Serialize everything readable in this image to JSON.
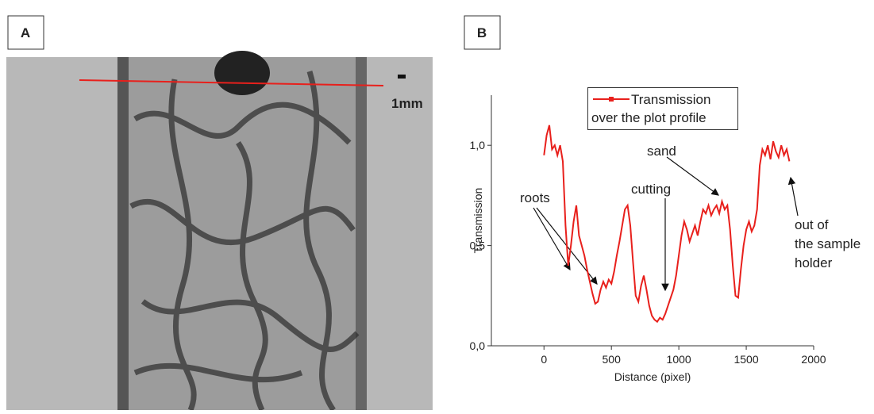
{
  "panel_labels": [
    "A",
    "B"
  ],
  "scale_label": "1mm",
  "chart_data": {
    "type": "line",
    "xlabel": "Distance (pixel)",
    "ylabel": "Transmission",
    "x": [
      0,
      20,
      40,
      60,
      80,
      100,
      120,
      140,
      160,
      180,
      200,
      220,
      240,
      260,
      280,
      300,
      320,
      340,
      360,
      380,
      400,
      420,
      440,
      460,
      480,
      500,
      520,
      540,
      560,
      580,
      600,
      620,
      640,
      660,
      680,
      700,
      720,
      740,
      760,
      780,
      800,
      820,
      840,
      860,
      880,
      900,
      920,
      940,
      960,
      980,
      1000,
      1020,
      1040,
      1060,
      1080,
      1100,
      1120,
      1140,
      1160,
      1180,
      1200,
      1220,
      1240,
      1260,
      1280,
      1300,
      1320,
      1340,
      1360,
      1380,
      1400,
      1420,
      1440,
      1460,
      1480,
      1500,
      1520,
      1540,
      1560,
      1580,
      1600,
      1620,
      1640,
      1660,
      1680,
      1700,
      1720,
      1740,
      1760,
      1780,
      1800,
      1820
    ],
    "series": [
      {
        "name": "Transmission over the plot profile",
        "color": "#e8201c",
        "values": [
          0.95,
          1.05,
          1.1,
          0.98,
          1.0,
          0.95,
          1.0,
          0.92,
          0.6,
          0.4,
          0.5,
          0.62,
          0.7,
          0.55,
          0.5,
          0.45,
          0.38,
          0.32,
          0.26,
          0.21,
          0.22,
          0.28,
          0.32,
          0.29,
          0.33,
          0.31,
          0.37,
          0.45,
          0.52,
          0.6,
          0.68,
          0.7,
          0.6,
          0.42,
          0.25,
          0.22,
          0.3,
          0.35,
          0.28,
          0.2,
          0.15,
          0.13,
          0.12,
          0.14,
          0.13,
          0.16,
          0.2,
          0.24,
          0.28,
          0.35,
          0.45,
          0.55,
          0.62,
          0.58,
          0.52,
          0.56,
          0.6,
          0.55,
          0.62,
          0.68,
          0.66,
          0.7,
          0.65,
          0.68,
          0.7,
          0.66,
          0.72,
          0.68,
          0.7,
          0.58,
          0.4,
          0.25,
          0.24,
          0.38,
          0.5,
          0.58,
          0.62,
          0.57,
          0.6,
          0.68,
          0.9,
          0.98,
          0.95,
          1.0,
          0.93,
          1.02,
          0.97,
          0.94,
          1.0,
          0.95,
          0.98,
          0.92
        ]
      }
    ],
    "xlim": [
      -390,
      2000
    ],
    "xticks": [
      0,
      500,
      1000,
      1500,
      2000
    ],
    "ylim": [
      0,
      1.25
    ],
    "yticks": [
      {
        "value": 0,
        "label": "0,0"
      },
      {
        "value": 0.5,
        "label": "0,5"
      },
      {
        "value": 1,
        "label": "1,0"
      }
    ],
    "annotations": [
      [
        "roots"
      ],
      [
        "cutting"
      ],
      [
        "sand"
      ],
      [
        "out of",
        "the sample",
        "holder"
      ]
    ]
  }
}
